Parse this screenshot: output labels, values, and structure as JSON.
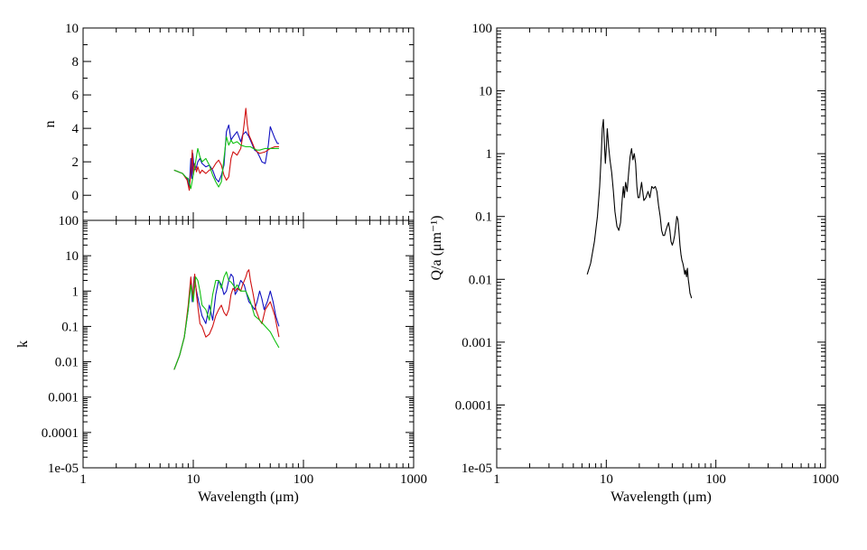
{
  "chart_data": [
    {
      "panel": "n",
      "type": "line",
      "xscale": "log",
      "xlim": [
        1,
        1000
      ],
      "ylim": [
        -1.5,
        10
      ],
      "xlabel": "",
      "ylabel": "n",
      "yticks": [
        0,
        2,
        4,
        6,
        8,
        10
      ],
      "colors": [
        "#1010c0",
        "#d01010",
        "#10c010"
      ],
      "series": [
        {
          "color": "#1010c0",
          "x": [
            6.7,
            8,
            8.8,
            9.2,
            9.5,
            9.7,
            9.9,
            10.2,
            10.6,
            11,
            11.5,
            12,
            13,
            14,
            15,
            16,
            17,
            18,
            19,
            20,
            21,
            22,
            23,
            25,
            27,
            28,
            30,
            32,
            34,
            36,
            38,
            40,
            42,
            45,
            48,
            50,
            52,
            55,
            58,
            60
          ],
          "y": [
            1.5,
            1.3,
            1.0,
            0.5,
            2.2,
            1.0,
            2.5,
            1.5,
            1.6,
            2.0,
            2.2,
            1.9,
            1.7,
            1.8,
            1.5,
            1.0,
            0.8,
            1.2,
            1.8,
            3.8,
            4.2,
            3.3,
            3.5,
            3.8,
            3.2,
            3.6,
            3.8,
            3.5,
            3.1,
            2.7,
            2.6,
            2.3,
            2.0,
            1.9,
            3.0,
            4.1,
            3.8,
            3.4,
            3.1,
            3.1
          ]
        },
        {
          "color": "#d01010",
          "x": [
            6.7,
            8,
            8.8,
            9.2,
            9.5,
            9.8,
            10,
            10.3,
            10.7,
            11,
            11.5,
            12,
            13,
            14,
            15,
            16,
            17,
            18,
            19,
            20,
            21,
            22,
            23,
            25,
            27,
            28,
            29,
            30,
            31,
            32,
            34,
            36,
            38,
            40,
            45,
            50,
            55,
            60
          ],
          "y": [
            1.5,
            1.3,
            0.9,
            0.3,
            1.4,
            2.7,
            1.2,
            1.9,
            1.4,
            1.7,
            1.3,
            1.5,
            1.3,
            1.5,
            1.6,
            1.9,
            2.1,
            1.8,
            1.2,
            0.9,
            1.1,
            2.2,
            2.6,
            2.4,
            2.8,
            3.5,
            4.3,
            5.2,
            4.2,
            3.6,
            3.2,
            2.8,
            2.6,
            2.5,
            2.6,
            2.8,
            2.9,
            2.9
          ]
        },
        {
          "color": "#10c010",
          "x": [
            6.7,
            8,
            8.5,
            9,
            9.5,
            10,
            10.5,
            11,
            11.5,
            12,
            13,
            14,
            15,
            16,
            17,
            18,
            19,
            20,
            21,
            22,
            23,
            25,
            27,
            30,
            33,
            35,
            38,
            40,
            45,
            50,
            55,
            60
          ],
          "y": [
            1.5,
            1.3,
            1.1,
            1.0,
            0.4,
            1.2,
            2.0,
            2.8,
            2.3,
            2.0,
            2.2,
            1.8,
            1.2,
            0.8,
            0.5,
            0.8,
            2.2,
            3.5,
            3.0,
            3.3,
            3.1,
            3.2,
            3.0,
            2.9,
            2.9,
            2.8,
            2.7,
            2.7,
            2.8,
            2.8,
            2.8,
            2.8
          ]
        }
      ]
    },
    {
      "panel": "k",
      "type": "line",
      "xscale": "log",
      "yscale": "log",
      "xlim": [
        1,
        1000
      ],
      "ylim": [
        1e-05,
        100
      ],
      "xlabel": "Wavelength (μm)",
      "ylabel": "k",
      "xticks": [
        1,
        10,
        100,
        1000
      ],
      "xtick_labels": [
        "1",
        "10",
        "100",
        "1000"
      ],
      "yticks": [
        1e-05,
        0.0001,
        0.001,
        0.01,
        0.1,
        1,
        10,
        100
      ],
      "ytick_labels": [
        "1e-05",
        "0.0001",
        "0.001",
        "0.01",
        "0.1",
        "1",
        "10",
        "100"
      ],
      "series": [
        {
          "color": "#1010c0",
          "x": [
            6.7,
            7.5,
            8.3,
            9,
            9.5,
            9.8,
            10.2,
            10.7,
            11.2,
            12,
            13,
            14,
            15,
            16,
            17,
            18,
            19,
            20,
            21,
            22,
            23,
            24,
            25,
            27,
            29,
            30,
            32,
            34,
            36,
            38,
            40,
            42,
            44,
            47,
            50,
            53,
            56,
            60
          ],
          "y": [
            0.006,
            0.015,
            0.05,
            0.3,
            2.0,
            0.5,
            2.5,
            1.0,
            0.5,
            0.2,
            0.12,
            0.4,
            0.15,
            0.8,
            2.0,
            1.5,
            0.8,
            1.0,
            2.0,
            3.0,
            2.5,
            0.8,
            1.0,
            2.0,
            1.5,
            1.0,
            0.5,
            0.4,
            0.3,
            0.5,
            1.0,
            0.6,
            0.3,
            0.5,
            1.0,
            0.5,
            0.2,
            0.1
          ]
        },
        {
          "color": "#d01010",
          "x": [
            6.7,
            7.5,
            8.3,
            9,
            9.5,
            9.9,
            10.3,
            10.8,
            11.5,
            12,
            13,
            14,
            15,
            16,
            17,
            18,
            19,
            20,
            21,
            22,
            23,
            24,
            25,
            27,
            28,
            30,
            31,
            32,
            33,
            35,
            37,
            40,
            42,
            45,
            50,
            55,
            60
          ],
          "y": [
            0.006,
            0.015,
            0.05,
            0.4,
            2.5,
            0.6,
            3.0,
            0.6,
            0.12,
            0.1,
            0.05,
            0.06,
            0.1,
            0.2,
            0.3,
            0.4,
            0.25,
            0.2,
            0.3,
            0.8,
            1.2,
            1.0,
            1.2,
            1.0,
            1.5,
            2.5,
            3.5,
            4.0,
            2.0,
            0.8,
            0.3,
            0.15,
            0.12,
            0.3,
            0.5,
            0.2,
            0.05
          ]
        },
        {
          "color": "#10c010",
          "x": [
            6.7,
            7.5,
            8.3,
            9,
            9.5,
            10,
            10.5,
            11,
            11.5,
            12,
            13,
            14,
            15,
            16,
            17,
            18,
            19,
            20,
            21,
            22,
            23,
            24,
            25,
            27,
            30,
            33,
            36,
            40,
            45,
            50,
            55,
            60
          ],
          "y": [
            0.006,
            0.015,
            0.05,
            0.3,
            1.5,
            0.5,
            2.5,
            2.0,
            1.0,
            0.4,
            0.3,
            0.15,
            0.8,
            2.0,
            2.0,
            1.2,
            2.5,
            3.5,
            2.0,
            1.8,
            1.5,
            1.2,
            1.5,
            1.0,
            1.0,
            0.5,
            0.2,
            0.15,
            0.1,
            0.07,
            0.04,
            0.025
          ]
        }
      ]
    },
    {
      "panel": "Q",
      "type": "line",
      "xscale": "log",
      "yscale": "log",
      "xlim": [
        1,
        1000
      ],
      "ylim": [
        1e-05,
        100
      ],
      "xlabel": "Wavelength (μm)",
      "ylabel": "Q/a (μm⁻¹)",
      "xticks": [
        1,
        10,
        100,
        1000
      ],
      "xtick_labels": [
        "1",
        "10",
        "100",
        "1000"
      ],
      "yticks": [
        1e-05,
        0.0001,
        0.001,
        0.01,
        0.1,
        1,
        10,
        100
      ],
      "ytick_labels": [
        "1e-05",
        "0.0001",
        "0.001",
        "0.01",
        "0.1",
        "1",
        "10",
        "100"
      ],
      "series": [
        {
          "color": "#000000",
          "x": [
            6.7,
            7.2,
            7.8,
            8.3,
            8.7,
            9.0,
            9.2,
            9.4,
            9.6,
            9.8,
            10.0,
            10.2,
            10.5,
            10.8,
            11.2,
            11.6,
            12.0,
            12.5,
            13.0,
            13.5,
            14.0,
            14.3,
            14.6,
            15.0,
            15.5,
            16.0,
            16.5,
            17.0,
            17.5,
            18.0,
            18.5,
            19.0,
            19.5,
            20.0,
            21.0,
            22.0,
            23.0,
            24.0,
            25.0,
            26.0,
            27.0,
            28.0,
            29.0,
            30.0,
            31.0,
            32.0,
            33.0,
            34.0,
            35.0,
            36.0,
            37.0,
            38.0,
            39.0,
            40.0,
            41.0,
            42.0,
            43.0,
            44.0,
            45.0,
            46.0,
            47.0,
            48.0,
            49.0,
            50.0,
            51.0,
            52.0,
            53.0,
            54.0,
            55.0,
            56.0,
            57.0,
            58.0,
            59.0,
            60.0
          ],
          "y": [
            0.012,
            0.018,
            0.04,
            0.1,
            0.3,
            1.0,
            2.5,
            3.5,
            1.5,
            0.7,
            1.2,
            2.5,
            1.3,
            0.8,
            0.5,
            0.25,
            0.12,
            0.07,
            0.06,
            0.08,
            0.2,
            0.3,
            0.2,
            0.35,
            0.25,
            0.5,
            0.9,
            1.2,
            0.8,
            1.0,
            0.7,
            0.3,
            0.2,
            0.2,
            0.35,
            0.18,
            0.2,
            0.25,
            0.2,
            0.3,
            0.28,
            0.3,
            0.25,
            0.15,
            0.1,
            0.06,
            0.05,
            0.05,
            0.06,
            0.07,
            0.08,
            0.06,
            0.04,
            0.035,
            0.04,
            0.05,
            0.07,
            0.1,
            0.09,
            0.06,
            0.035,
            0.025,
            0.02,
            0.018,
            0.015,
            0.012,
            0.014,
            0.011,
            0.015,
            0.01,
            0.008,
            0.006,
            0.0055,
            0.005
          ]
        }
      ]
    }
  ]
}
